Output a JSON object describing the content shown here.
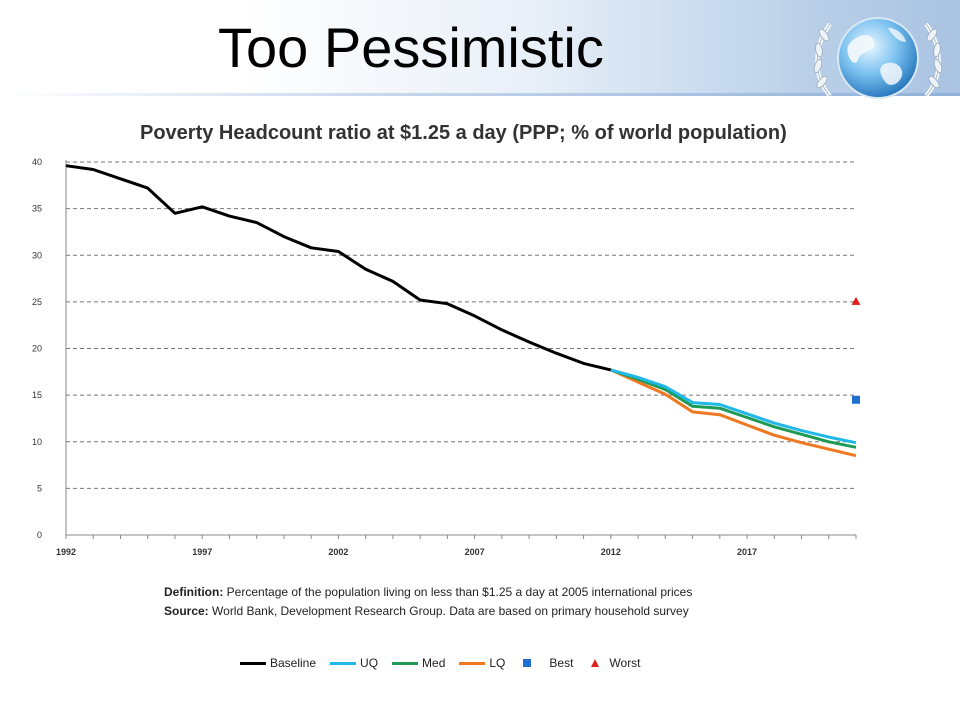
{
  "slide": {
    "title": "Too Pessimistic",
    "logo_icon": "globe-laurel-icon"
  },
  "chart_data": {
    "type": "line",
    "title": "Poverty Headcount ratio at $1.25 a day (PPP; % of world population)",
    "xlabel": "",
    "ylabel": "",
    "xlim": [
      1992,
      2021
    ],
    "ylim": [
      0,
      40
    ],
    "yticks": [
      0,
      5,
      10,
      15,
      20,
      25,
      30,
      35,
      40
    ],
    "xticks": [
      1992,
      1997,
      2002,
      2007,
      2012,
      2017
    ],
    "grid": "horizontal-dashed",
    "legend_position": "bottom",
    "series": [
      {
        "name": "Baseline",
        "color": "#000000",
        "x": [
          1992,
          1993,
          1994,
          1995,
          1996,
          1997,
          1998,
          1999,
          2000,
          2001,
          2002,
          2003,
          2004,
          2005,
          2006,
          2007,
          2008,
          2009,
          2010,
          2011,
          2012
        ],
        "y": [
          39.6,
          39.2,
          38.2,
          37.2,
          34.5,
          35.2,
          34.2,
          33.5,
          32.0,
          30.8,
          30.4,
          28.5,
          27.2,
          25.2,
          24.8,
          23.5,
          22.0,
          20.7,
          19.5,
          18.4,
          17.7
        ]
      },
      {
        "name": "UQ",
        "color": "#20b8e8",
        "x": [
          2012,
          2013,
          2014,
          2015,
          2016,
          2017,
          2018,
          2019,
          2020,
          2021
        ],
        "y": [
          17.7,
          16.9,
          15.9,
          14.2,
          14.0,
          13.0,
          12.0,
          11.2,
          10.5,
          9.9
        ]
      },
      {
        "name": "Med",
        "color": "#1f9a55",
        "x": [
          2012,
          2013,
          2014,
          2015,
          2016,
          2017,
          2018,
          2019,
          2020,
          2021
        ],
        "y": [
          17.7,
          16.7,
          15.6,
          13.8,
          13.6,
          12.6,
          11.6,
          10.8,
          10.0,
          9.4
        ]
      },
      {
        "name": "LQ",
        "color": "#f07820",
        "x": [
          2012,
          2013,
          2014,
          2015,
          2016,
          2017,
          2018,
          2019,
          2020,
          2021
        ],
        "y": [
          17.7,
          16.4,
          15.1,
          13.2,
          12.9,
          11.8,
          10.7,
          9.9,
          9.2,
          8.5
        ]
      }
    ],
    "points": [
      {
        "name": "Best",
        "color": "#1f6fd0",
        "marker": "square",
        "x": 2021,
        "y": 14.5
      },
      {
        "name": "Worst",
        "color": "#e02020",
        "marker": "triangle",
        "x": 2021,
        "y": 25.0
      }
    ]
  },
  "notes": {
    "definition_label": "Definition:",
    "definition_text": "Percentage of the population living on less than $1.25 a day at 2005 international prices",
    "source_label": "Source:",
    "source_text": "World Bank, Development Research Group. Data are based on primary household survey"
  },
  "legend": {
    "baseline": "Baseline",
    "uq": "UQ",
    "med": "Med",
    "lq": "LQ",
    "best": "Best",
    "worst": "Worst"
  }
}
